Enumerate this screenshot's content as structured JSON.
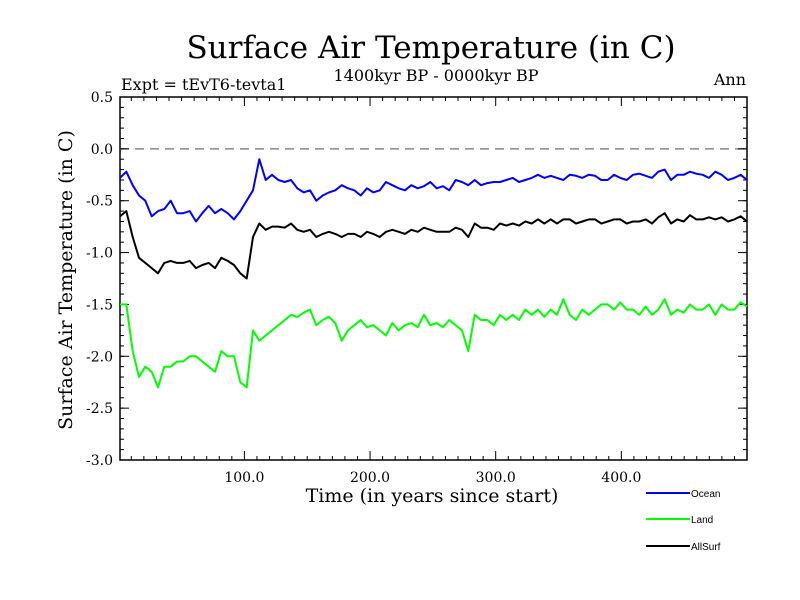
{
  "chart_data": {
    "type": "line",
    "title": "Surface Air Temperature (in C)",
    "subtitle": "1400kyr BP - 0000kyr BP",
    "left_label": "Expt = tEvT6-tevta1",
    "right_label": "Ann",
    "xlabel": "Time (in years since start)",
    "ylabel": "Surface Air Temperature (in C)",
    "xlim": [
      1,
      500
    ],
    "ylim": [
      -3.0,
      0.5
    ],
    "x_ticks": [
      100,
      200,
      300,
      400
    ],
    "x_tick_labels": [
      "100.0",
      "200.0",
      "300.0",
      "400.0"
    ],
    "y_ticks": [
      -3.0,
      -2.5,
      -2.0,
      -1.5,
      -1.0,
      -0.5,
      0.0,
      0.5
    ],
    "y_tick_labels": [
      "-3.0",
      "-2.5",
      "-2.0",
      "-1.5",
      "-1.0",
      "-0.5",
      "0.0",
      "0.5"
    ],
    "reference_line": 0.0,
    "series": [
      {
        "name": "Ocean",
        "color": "#0000ff",
        "values": [
          -0.28,
          -0.22,
          -0.35,
          -0.45,
          -0.5,
          -0.65,
          -0.6,
          -0.58,
          -0.5,
          -0.62,
          -0.62,
          -0.6,
          -0.7,
          -0.62,
          -0.55,
          -0.62,
          -0.58,
          -0.62,
          -0.68,
          -0.6,
          -0.5,
          -0.4,
          -0.1,
          -0.3,
          -0.25,
          -0.3,
          -0.32,
          -0.3,
          -0.38,
          -0.42,
          -0.4,
          -0.5,
          -0.45,
          -0.42,
          -0.4,
          -0.35,
          -0.38,
          -0.4,
          -0.45,
          -0.38,
          -0.42,
          -0.4,
          -0.32,
          -0.35,
          -0.38,
          -0.4,
          -0.35,
          -0.38,
          -0.36,
          -0.32,
          -0.38,
          -0.36,
          -0.4,
          -0.3,
          -0.32,
          -0.35,
          -0.3,
          -0.35,
          -0.33,
          -0.32,
          -0.32,
          -0.3,
          -0.28,
          -0.32,
          -0.3,
          -0.28,
          -0.25,
          -0.28,
          -0.26,
          -0.28,
          -0.3,
          -0.25,
          -0.26,
          -0.28,
          -0.25,
          -0.26,
          -0.3,
          -0.3,
          -0.25,
          -0.28,
          -0.3,
          -0.25,
          -0.24,
          -0.26,
          -0.28,
          -0.22,
          -0.2,
          -0.3,
          -0.25,
          -0.25,
          -0.22,
          -0.24,
          -0.25,
          -0.28,
          -0.22,
          -0.25,
          -0.3,
          -0.28,
          -0.25,
          -0.3
        ]
      },
      {
        "name": "Land",
        "color": "#00ff00",
        "values": [
          -1.5,
          -1.5,
          -1.95,
          -2.2,
          -2.1,
          -2.15,
          -2.3,
          -2.1,
          -2.1,
          -2.05,
          -2.05,
          -2.0,
          -2.0,
          -2.05,
          -2.1,
          -2.15,
          -1.95,
          -2.0,
          -2.0,
          -2.25,
          -2.3,
          -1.75,
          -1.85,
          -1.8,
          -1.75,
          -1.7,
          -1.65,
          -1.6,
          -1.62,
          -1.58,
          -1.55,
          -1.7,
          -1.65,
          -1.62,
          -1.68,
          -1.85,
          -1.75,
          -1.7,
          -1.65,
          -1.72,
          -1.7,
          -1.75,
          -1.8,
          -1.68,
          -1.75,
          -1.7,
          -1.68,
          -1.72,
          -1.6,
          -1.7,
          -1.68,
          -1.72,
          -1.65,
          -1.7,
          -1.75,
          -1.95,
          -1.6,
          -1.65,
          -1.65,
          -1.7,
          -1.6,
          -1.65,
          -1.6,
          -1.65,
          -1.55,
          -1.6,
          -1.55,
          -1.62,
          -1.55,
          -1.6,
          -1.45,
          -1.6,
          -1.65,
          -1.55,
          -1.6,
          -1.55,
          -1.5,
          -1.5,
          -1.55,
          -1.48,
          -1.55,
          -1.55,
          -1.6,
          -1.52,
          -1.6,
          -1.55,
          -1.45,
          -1.6,
          -1.55,
          -1.58,
          -1.5,
          -1.55,
          -1.55,
          -1.5,
          -1.6,
          -1.5,
          -1.55,
          -1.55,
          -1.48,
          -1.52
        ]
      },
      {
        "name": "AllSurf",
        "color": "#000000",
        "values": [
          -0.65,
          -0.6,
          -0.85,
          -1.05,
          -1.1,
          -1.15,
          -1.2,
          -1.1,
          -1.08,
          -1.1,
          -1.1,
          -1.08,
          -1.15,
          -1.12,
          -1.1,
          -1.15,
          -1.05,
          -1.08,
          -1.12,
          -1.2,
          -1.25,
          -0.85,
          -0.72,
          -0.78,
          -0.75,
          -0.75,
          -0.76,
          -0.72,
          -0.78,
          -0.8,
          -0.78,
          -0.85,
          -0.82,
          -0.8,
          -0.82,
          -0.85,
          -0.82,
          -0.82,
          -0.85,
          -0.8,
          -0.82,
          -0.85,
          -0.8,
          -0.78,
          -0.8,
          -0.82,
          -0.78,
          -0.8,
          -0.76,
          -0.78,
          -0.8,
          -0.8,
          -0.8,
          -0.76,
          -0.78,
          -0.85,
          -0.72,
          -0.76,
          -0.76,
          -0.78,
          -0.72,
          -0.74,
          -0.72,
          -0.74,
          -0.7,
          -0.72,
          -0.68,
          -0.72,
          -0.68,
          -0.72,
          -0.68,
          -0.68,
          -0.72,
          -0.7,
          -0.68,
          -0.68,
          -0.72,
          -0.7,
          -0.68,
          -0.68,
          -0.72,
          -0.7,
          -0.7,
          -0.68,
          -0.72,
          -0.66,
          -0.62,
          -0.72,
          -0.68,
          -0.7,
          -0.64,
          -0.68,
          -0.68,
          -0.66,
          -0.68,
          -0.66,
          -0.7,
          -0.68,
          -0.65,
          -0.7
        ]
      }
    ],
    "legend_position": "bottom-right"
  }
}
